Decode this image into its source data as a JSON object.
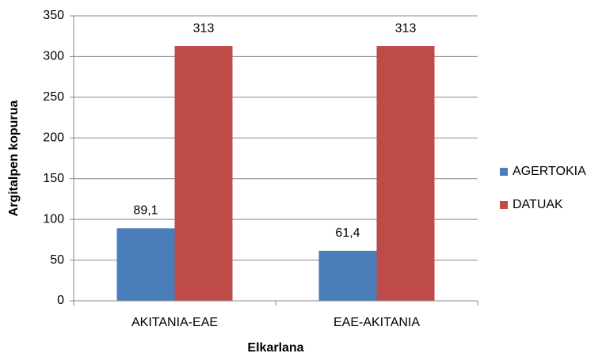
{
  "chart_data": {
    "type": "bar",
    "categories": [
      "AKITANIA-EAE",
      "EAE-AKITANIA"
    ],
    "series": [
      {
        "name": "AGERTOKIA",
        "color": "#4a7ebb",
        "values": [
          89.1,
          61.4
        ],
        "value_labels": [
          "89,1",
          "61,4"
        ]
      },
      {
        "name": "DATUAK",
        "color": "#be4b48",
        "values": [
          313,
          313
        ],
        "value_labels": [
          "313",
          "313"
        ]
      }
    ],
    "ylim": [
      0,
      350
    ],
    "yticks": [
      0,
      50,
      100,
      150,
      200,
      250,
      300,
      350
    ],
    "ylabel": "Argitalpen kopurua",
    "xlabel": "Elkarlana",
    "grid": true,
    "legend": "right"
  }
}
